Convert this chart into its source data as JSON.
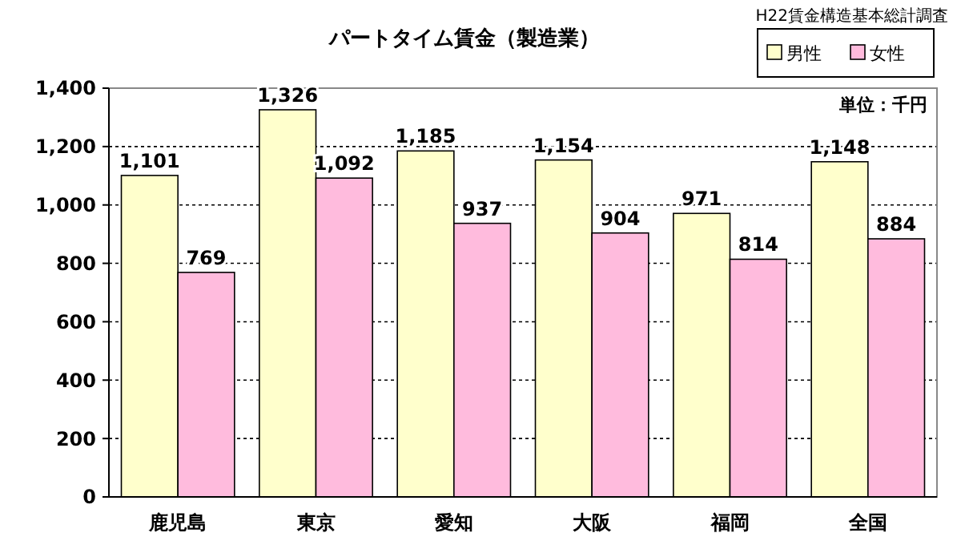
{
  "chart_data": {
    "type": "bar",
    "title": "パートタイム賃金（製造業）",
    "annotations": [
      "H22賃金構造基本総計調査",
      "単位：千円"
    ],
    "categories": [
      "鹿児島",
      "東京",
      "愛知",
      "大阪",
      "福岡",
      "全国"
    ],
    "series": [
      {
        "name": "男性",
        "color": "#ffffcc",
        "values": [
          1101,
          1326,
          1185,
          1154,
          971,
          1148
        ],
        "value_labels": [
          "1,101",
          "1,326",
          "1,185",
          "1,154",
          "971",
          "1,148"
        ]
      },
      {
        "name": "女性",
        "color": "#ffbbdd",
        "values": [
          769,
          1092,
          937,
          904,
          814,
          884
        ],
        "value_labels": [
          "769",
          "1,092",
          "937",
          "904",
          "814",
          "884"
        ]
      }
    ],
    "ylim": [
      0,
      1400
    ],
    "yticks": [
      0,
      200,
      400,
      600,
      800,
      {
        "value": 1000,
        "label": "1,000"
      },
      {
        "value": 1200,
        "label": "1,200"
      },
      {
        "value": 1400,
        "label": "1,400"
      }
    ],
    "grid": "y",
    "legend": "top right"
  }
}
